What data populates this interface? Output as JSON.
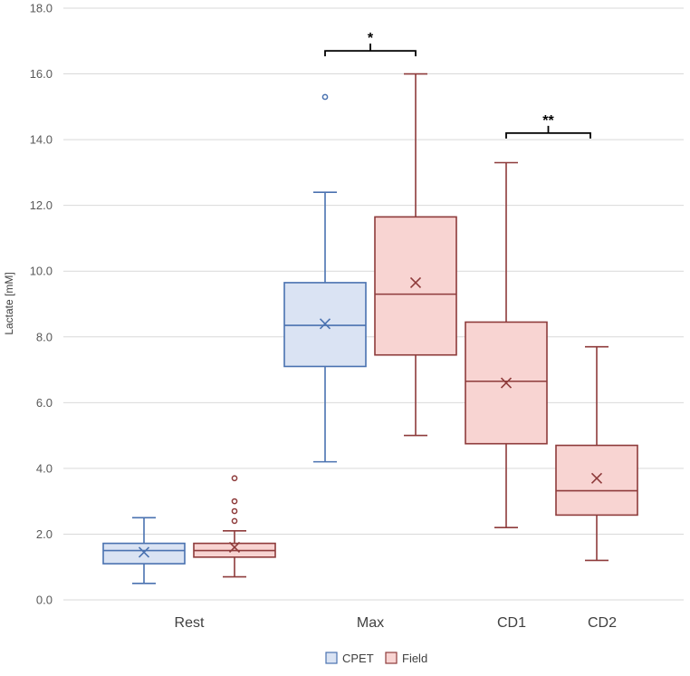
{
  "chart_data": {
    "type": "box",
    "title": "",
    "xlabel": "",
    "ylabel": "Lactate [mM]",
    "ylim": [
      0,
      18
    ],
    "yticks": [
      0,
      2,
      4,
      6,
      8,
      10,
      12,
      14,
      16,
      18
    ],
    "ytick_labels": [
      "0.0",
      "2.0",
      "4.0",
      "6.0",
      "8.0",
      "10.0",
      "12.0",
      "14.0",
      "16.0",
      "18.0"
    ],
    "categories": [
      "Rest",
      "Max",
      "CD1",
      "CD2"
    ],
    "grid": true,
    "legend_position": "bottom",
    "series": [
      {
        "name": "CPET",
        "fill": "#dae3f3",
        "stroke": "#4a72b0",
        "boxes": [
          {
            "category": "Rest",
            "min": 0.5,
            "q1": 1.1,
            "median": 1.5,
            "q3": 1.72,
            "max": 2.5,
            "mean": 1.45,
            "outliers": []
          },
          {
            "category": "Max",
            "min": 4.2,
            "q1": 7.1,
            "median": 8.35,
            "q3": 9.65,
            "max": 12.4,
            "mean": 8.4,
            "outliers": [
              15.3
            ]
          }
        ]
      },
      {
        "name": "Field",
        "fill": "#f8d4d2",
        "stroke": "#8e3b3b",
        "boxes": [
          {
            "category": "Rest",
            "min": 0.7,
            "q1": 1.3,
            "median": 1.5,
            "q3": 1.72,
            "max": 2.1,
            "mean": 1.6,
            "outliers": [
              2.4,
              2.7,
              3.0,
              3.7
            ]
          },
          {
            "category": "Max",
            "min": 5.0,
            "q1": 7.45,
            "median": 9.3,
            "q3": 11.65,
            "max": 16.0,
            "mean": 9.65,
            "outliers": []
          },
          {
            "category": "CD1",
            "min": 2.2,
            "q1": 4.75,
            "median": 6.65,
            "q3": 8.45,
            "max": 13.3,
            "mean": 6.6,
            "outliers": []
          },
          {
            "category": "CD2",
            "min": 1.2,
            "q1": 2.58,
            "median": 3.32,
            "q3": 4.7,
            "max": 7.7,
            "mean": 3.7,
            "outliers": []
          }
        ]
      }
    ],
    "significance": [
      {
        "label": "*",
        "between": [
          "CPET Max",
          "Field Max"
        ],
        "y": 16.7
      },
      {
        "label": "**",
        "between": [
          "Field CD1",
          "Field CD2"
        ],
        "y": 14.2
      }
    ]
  }
}
